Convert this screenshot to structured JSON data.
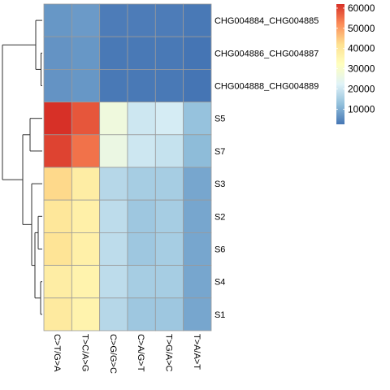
{
  "chart_data": {
    "type": "heatmap",
    "columns": [
      "C>T/G>A",
      "T>C/A>G",
      "C>G/G>C",
      "C>A/G>T",
      "T>G/A>C",
      "T>A/A>T"
    ],
    "rows": [
      "CHG004884_CHG004885",
      "CHG004886_CHG004887",
      "CHG004888_CHG004889",
      "S5",
      "S7",
      "S3",
      "S2",
      "S6",
      "S4",
      "S1"
    ],
    "values": [
      [
        7000,
        7500,
        3500,
        3500,
        3500,
        3000
      ],
      [
        6500,
        7000,
        3000,
        3000,
        3000,
        2500
      ],
      [
        6500,
        7000,
        3000,
        3000,
        3000,
        2500
      ],
      [
        62000,
        58000,
        27000,
        20000,
        21000,
        13000
      ],
      [
        60000,
        55000,
        26000,
        20000,
        19000,
        12000
      ],
      [
        43000,
        38000,
        17000,
        15000,
        15000,
        9000
      ],
      [
        40000,
        37000,
        18000,
        14000,
        15000,
        9000
      ],
      [
        41000,
        37000,
        18000,
        14000,
        15000,
        9000
      ],
      [
        38000,
        36000,
        18000,
        15000,
        15000,
        9000
      ],
      [
        39000,
        36000,
        17000,
        14000,
        14000,
        9000
      ]
    ],
    "row_dendrogram": true,
    "colorbar": {
      "range": [
        2500,
        62000
      ],
      "ticks": [
        10000,
        20000,
        30000,
        40000,
        50000,
        60000
      ],
      "tick_labels": [
        "10000",
        "20000",
        "30000",
        "40000",
        "50000",
        "60000"
      ],
      "colors": [
        "#4575B4",
        "#91BFDB",
        "#E0F3F8",
        "#FFFFBF",
        "#FEE090",
        "#FC8D59",
        "#D73027"
      ]
    }
  }
}
